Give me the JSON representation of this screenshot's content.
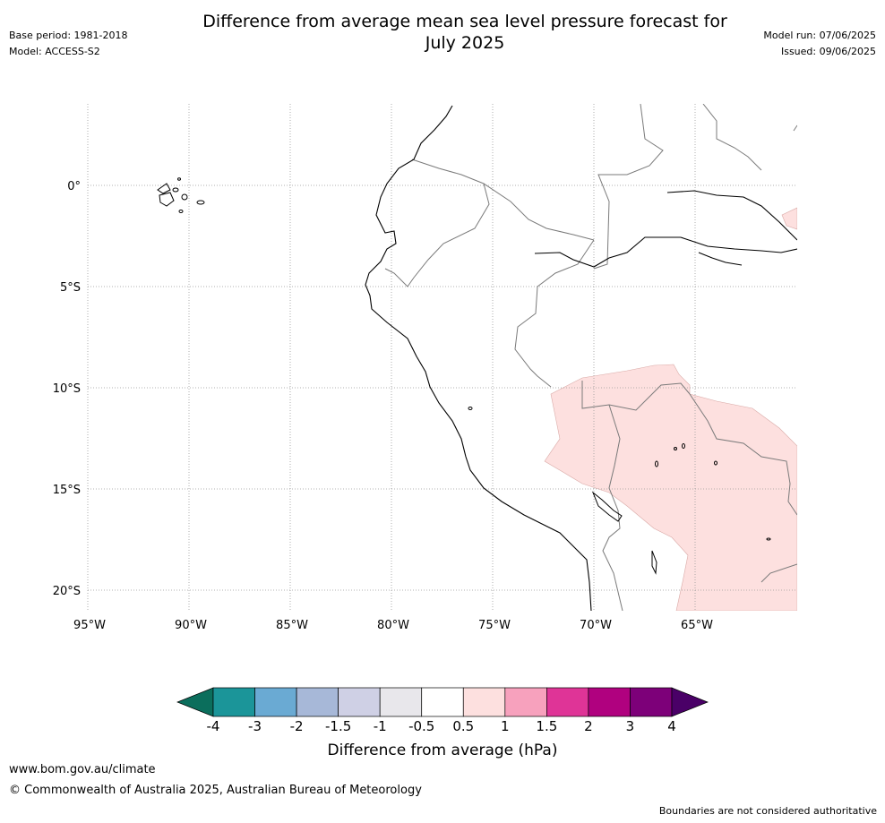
{
  "header": {
    "title_line1": "Difference from average mean sea level pressure forecast for",
    "title_line2": "July 2025",
    "base_period": "Base period: 1981-2018",
    "model": "Model: ACCESS-S2",
    "model_run": "Model run: 07/06/2025",
    "issued": "Issued: 09/06/2025"
  },
  "map": {
    "lon_labels": [
      "95°W",
      "90°W",
      "85°W",
      "80°W",
      "75°W",
      "70°W",
      "65°W"
    ],
    "lat_labels": [
      "0°",
      "5°S",
      "10°S",
      "15°S",
      "20°S"
    ],
    "anomaly_regions": [
      {
        "name": "south-bolivia-region",
        "category": "0.5 to 1",
        "color": "#fde0df"
      },
      {
        "name": "northeast-region",
        "category": "0.5 to 1",
        "color": "#fde0df"
      }
    ]
  },
  "legend": {
    "title": "Difference from average (hPa)",
    "ticks": [
      "-4",
      "-3",
      "-2",
      "-1.5",
      "-1",
      "-0.5",
      "0.5",
      "1",
      "1.5",
      "2",
      "3",
      "4"
    ],
    "colors": [
      "#0b6e5c",
      "#1b9599",
      "#6aaad3",
      "#a7b8d8",
      "#cfd0e5",
      "#e8e7eb",
      "#ffffff",
      "#fde0df",
      "#f7a1bd",
      "#df3497",
      "#b0017f",
      "#7d0079",
      "#4a0067"
    ]
  },
  "footer": {
    "link": "www.bom.gov.au/climate",
    "copyright": "© Commonwealth of Australia 2025, Australian Bureau of Meteorology",
    "note": "Boundaries are not considered authoritative"
  }
}
